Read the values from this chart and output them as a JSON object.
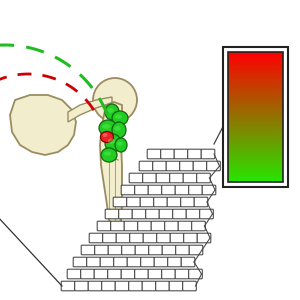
{
  "bg_color": "#ffffff",
  "bone_fill": "#f2edcc",
  "bone_edge": "#9b8c60",
  "green_cell_color": "#22cc22",
  "red_cell_color": "#ee2222",
  "green_arrow_color": "#22bb22",
  "red_arrow_color": "#cc0000",
  "channel_fill": "#ffffff",
  "channel_edge": "#444444",
  "rect_outline": "#222222",
  "fig_w": 3.0,
  "fig_h": 3.0,
  "dpi": 100
}
